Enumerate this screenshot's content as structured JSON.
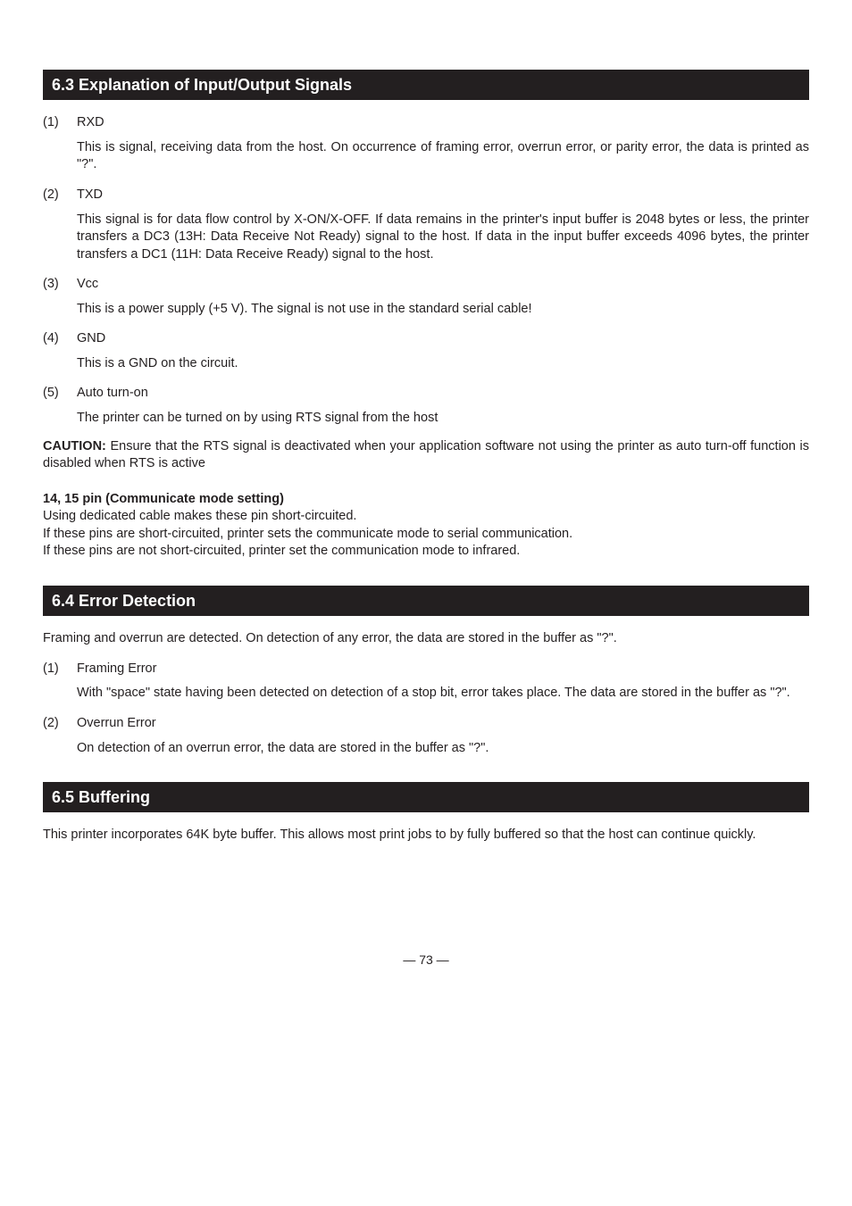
{
  "section63": {
    "title": "6.3  Explanation of Input/Output Signals",
    "items": [
      {
        "num": "(1)",
        "label": "RXD",
        "body": "This is signal, receiving data from the host.  On occurrence of framing error, overrun error, or parity error, the data is printed as \"?\"."
      },
      {
        "num": "(2)",
        "label": "TXD",
        "body": "This signal is for data flow control by X-ON/X-OFF.  If data remains in the printer's input buffer is 2048 bytes or less, the printer transfers a DC3 (13H: Data Receive Not Ready) signal to the host.  If data in the input buffer exceeds 4096 bytes, the printer transfers a DC1 (11H: Data Receive Ready) signal to the host."
      },
      {
        "num": "(3)",
        "label": "Vcc",
        "body": "This is a power supply (+5 V).  The signal is not use in the standard serial cable!"
      },
      {
        "num": "(4)",
        "label": "GND",
        "body": "This is a GND on the circuit."
      },
      {
        "num": "(5)",
        "label": "Auto turn-on",
        "body": "The printer can be turned on by using RTS signal from the host"
      }
    ],
    "caution_label": "CAUTION:",
    "caution_text": " Ensure that the RTS signal is deactivated when your application software not using the printer as auto turn-off function is disabled when RTS is active",
    "pin_header": "14, 15 pin (Communicate mode setting)",
    "pin_lines": [
      "Using dedicated cable makes these pin short-circuited.",
      "If these pins are short-circuited, printer sets the communicate mode to serial communication.",
      "If these pins are not short-circuited, printer set the communication mode to infrared."
    ]
  },
  "section64": {
    "title": "6.4 Error Detection",
    "intro": "Framing and overrun are detected.  On detection of any error, the data are stored in the buffer as \"?\".",
    "items": [
      {
        "num": "(1)",
        "label": "Framing Error",
        "body": "With \"space\" state having been detected on detection of a stop bit, error takes place.  The data are stored in the buffer as \"?\"."
      },
      {
        "num": "(2)",
        "label": "Overrun Error",
        "body": "On detection of an overrun error, the data are stored in the buffer as \"?\"."
      }
    ]
  },
  "section65": {
    "title": "6.5 Buffering",
    "body": "This printer incorporates 64K byte buffer.  This allows most print jobs to by fully buffered so that the host can continue quickly."
  },
  "page_number": "— 73 —"
}
